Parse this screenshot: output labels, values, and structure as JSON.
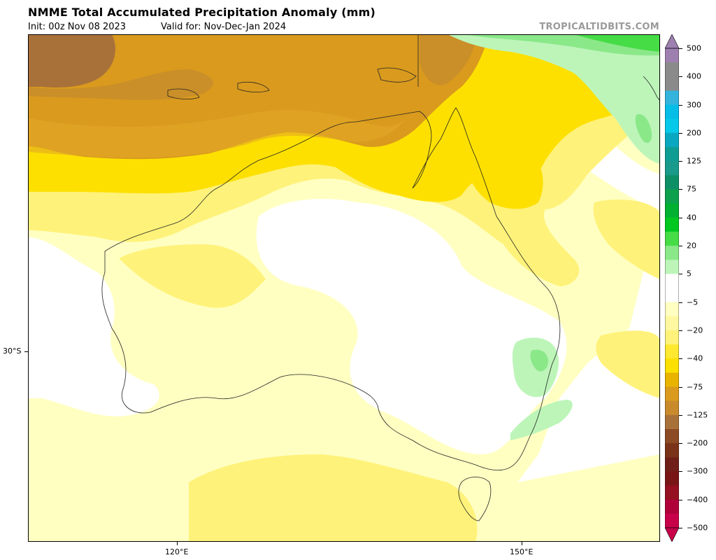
{
  "header": {
    "title": "NMME Total Accumulated Precipitation Anomaly (mm)",
    "init": "Init: 00z Nov 08 2023",
    "valid": "Valid for: Nov-Dec-Jan 2024",
    "brand": "TROPICALTIDBITS.COM"
  },
  "map": {
    "region": "Australia",
    "axis_ticks": {
      "x": [
        "120°E",
        "150°E"
      ],
      "y": [
        "30°S"
      ]
    }
  },
  "colorbar": {
    "labels": [
      "500",
      "400",
      "300",
      "200",
      "125",
      "75",
      "40",
      "20",
      "5",
      "−5",
      "−20",
      "−40",
      "−75",
      "−125",
      "−200",
      "−300",
      "−400",
      "−500"
    ],
    "colors": {
      "very_dry": "#b0004a",
      "dry_brown": "#a9713a",
      "orange": "#d99a1e",
      "gold": "#fde000",
      "yellow": "#fff27a",
      "pale_yellow": "#ffffc2",
      "light_green": "#bdf5b9",
      "green": "#46dc46",
      "teal": "#0f9d93",
      "cyan": "#06bde8",
      "purple": "#9d80b0"
    }
  }
}
